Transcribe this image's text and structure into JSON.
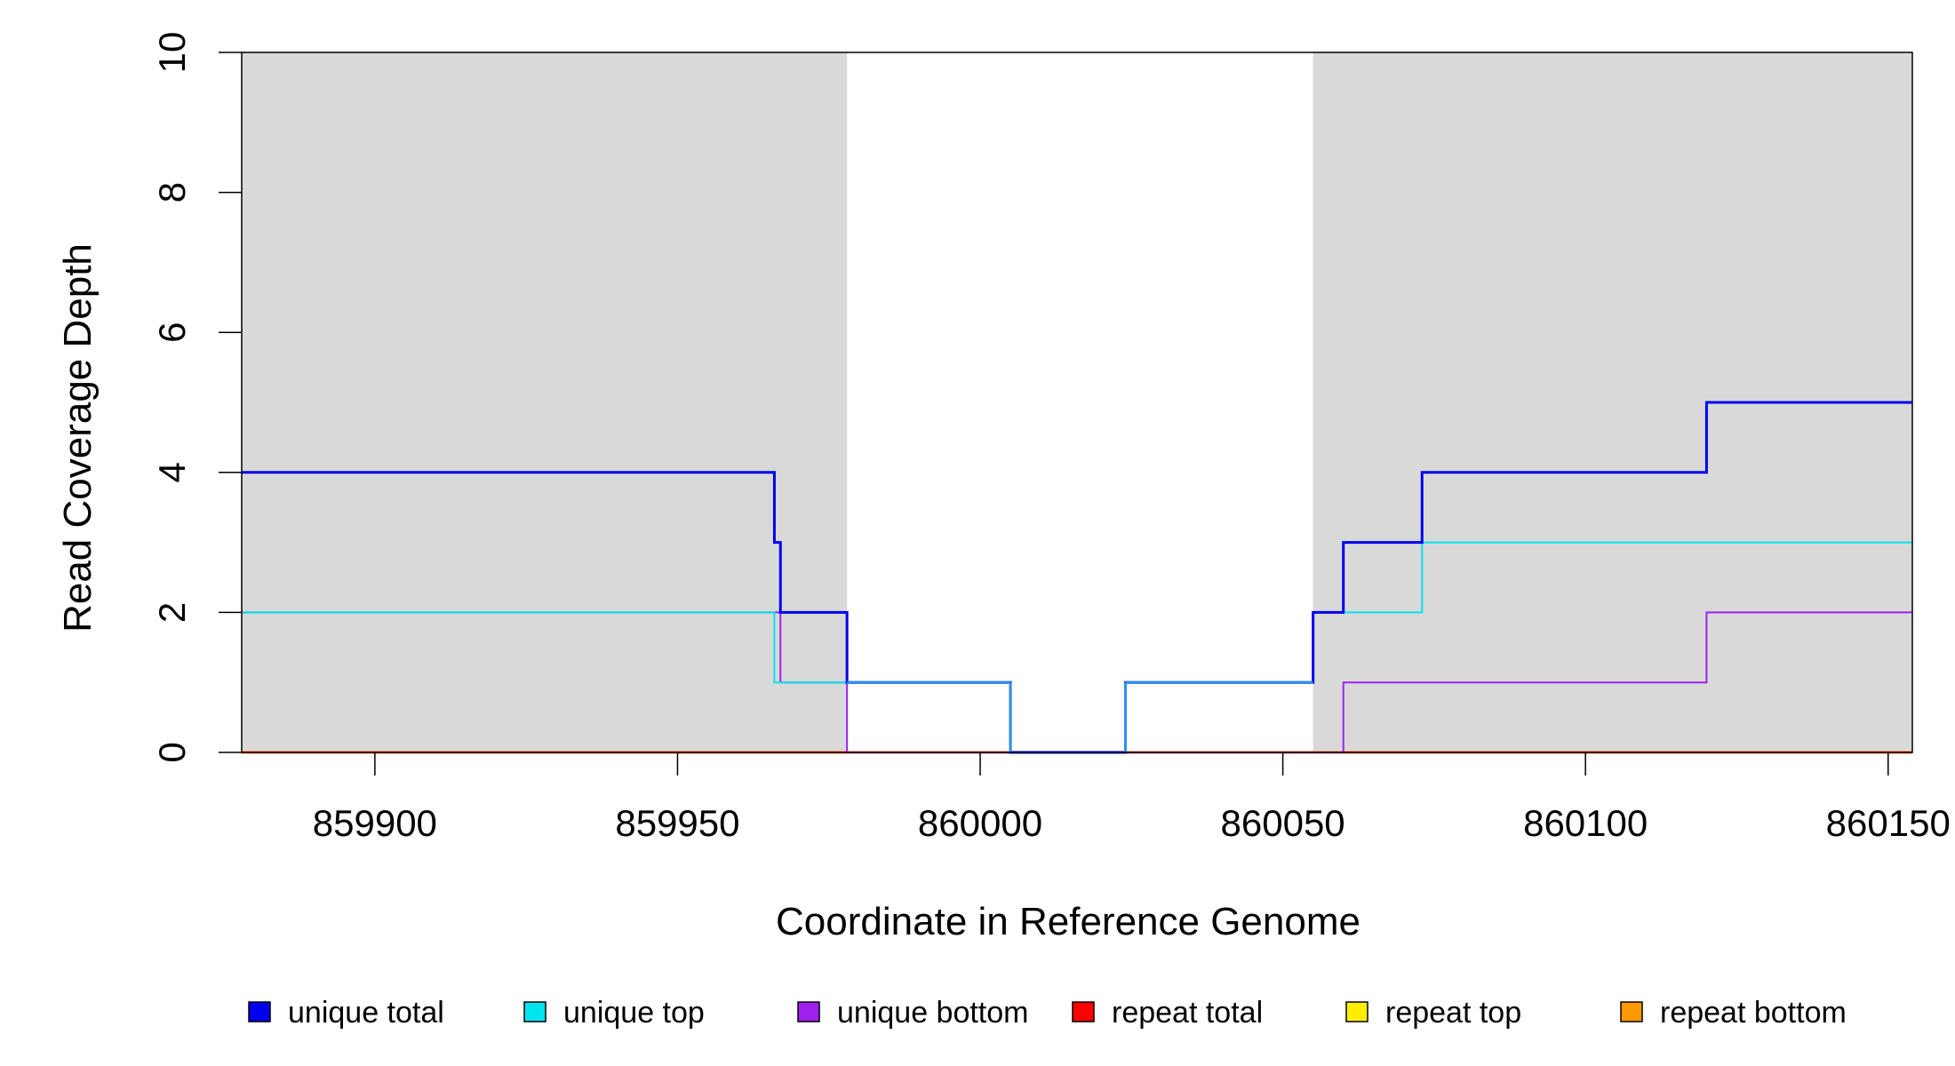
{
  "chart_data": {
    "type": "line",
    "title": "",
    "xlabel": "Coordinate in Reference Genome",
    "ylabel": "Read Coverage Depth",
    "xlim": [
      859878,
      860154
    ],
    "ylim": [
      0,
      10
    ],
    "x_ticks": [
      859900,
      859950,
      860000,
      860050,
      860100,
      860150
    ],
    "x_tick_labels": [
      "859900",
      "859950",
      "860000",
      "860050",
      "860100",
      "860150"
    ],
    "y_ticks": [
      0,
      2,
      4,
      6,
      8,
      10
    ],
    "y_tick_labels": [
      "0",
      "2",
      "4",
      "6",
      "8",
      "10"
    ],
    "grid": false,
    "legend_position": "bottom",
    "shaded_regions": [
      {
        "x0": 859878,
        "x1": 859978,
        "color": "#d9d9d9"
      },
      {
        "x0": 860055,
        "x1": 860154,
        "color": "#d9d9d9"
      }
    ],
    "series": [
      {
        "name": "unique total",
        "color": "#0000ee",
        "points": [
          [
            859878,
            4
          ],
          [
            859966,
            4
          ],
          [
            859966,
            3
          ],
          [
            859967,
            3
          ],
          [
            859967,
            2
          ],
          [
            859978,
            2
          ],
          [
            859978,
            1
          ],
          [
            860005,
            1
          ],
          [
            860005,
            0
          ],
          [
            860024,
            0
          ],
          [
            860024,
            1
          ],
          [
            860055,
            1
          ],
          [
            860055,
            2
          ],
          [
            860060,
            2
          ],
          [
            860060,
            3
          ],
          [
            860073,
            3
          ],
          [
            860073,
            4
          ],
          [
            860120,
            4
          ],
          [
            860120,
            5
          ],
          [
            860154,
            5
          ]
        ]
      },
      {
        "name": "unique top",
        "color": "#00e5ee",
        "points": [
          [
            859878,
            2
          ],
          [
            859966,
            2
          ],
          [
            859966,
            1
          ],
          [
            859978,
            1
          ],
          [
            860005,
            1
          ],
          [
            860005,
            0
          ],
          [
            860024,
            0
          ],
          [
            860024,
            1
          ],
          [
            860055,
            1
          ],
          [
            860055,
            2
          ],
          [
            860073,
            2
          ],
          [
            860073,
            3
          ],
          [
            860154,
            3
          ]
        ]
      },
      {
        "name": "unique bottom",
        "color": "#a020f0",
        "points": [
          [
            859878,
            2
          ],
          [
            859967,
            2
          ],
          [
            859967,
            1
          ],
          [
            859978,
            1
          ],
          [
            859978,
            0
          ],
          [
            860060,
            0
          ],
          [
            860060,
            1
          ],
          [
            860120,
            1
          ],
          [
            860120,
            2
          ],
          [
            860154,
            2
          ]
        ]
      },
      {
        "name": "repeat total",
        "color": "#ff0000",
        "points": [
          [
            859878,
            0
          ],
          [
            860154,
            0
          ]
        ]
      },
      {
        "name": "repeat top",
        "color": "#ffee00",
        "points": [
          [
            859878,
            0
          ],
          [
            860154,
            0
          ]
        ]
      },
      {
        "name": "repeat bottom",
        "color": "#ff9900",
        "points": [
          [
            859878,
            0
          ],
          [
            860154,
            0
          ]
        ]
      }
    ]
  }
}
